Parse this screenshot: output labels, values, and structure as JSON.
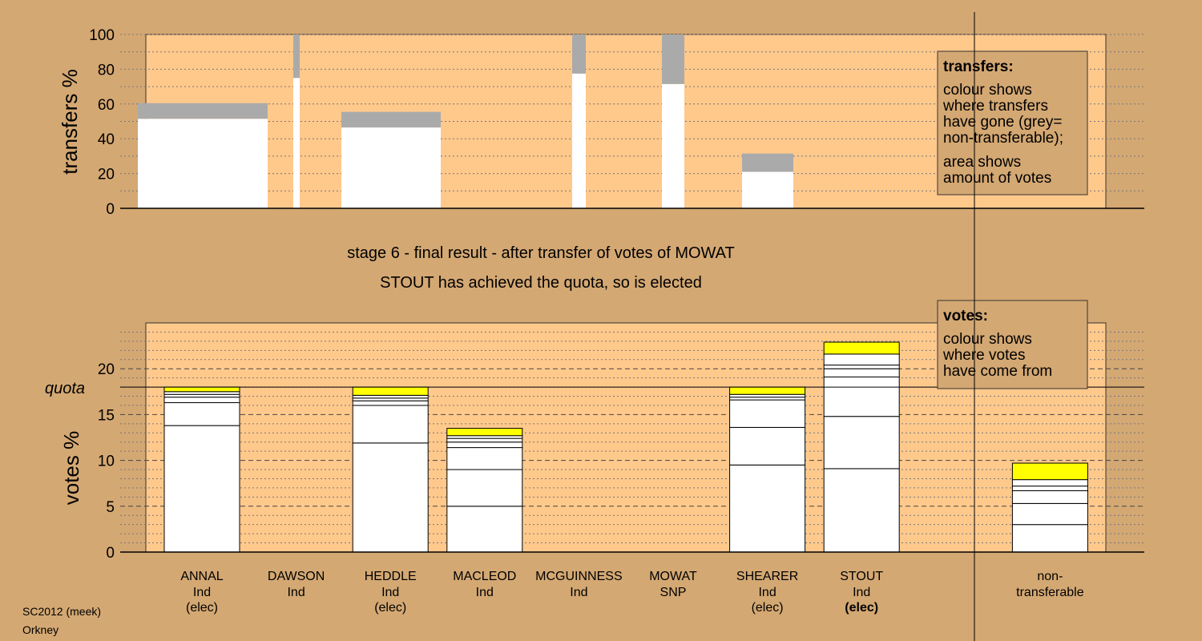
{
  "chart_data": [
    {
      "type": "bar",
      "stacked": true,
      "ylabel": "transfers %",
      "ylim": [
        0,
        100
      ],
      "yticks": [
        0,
        20,
        40,
        60,
        80,
        100
      ],
      "bars": [
        {
          "candidate": "ANNAL",
          "white": 51.5,
          "grey": 9
        },
        {
          "candidate": "DAWSON",
          "white": 75,
          "grey": 25
        },
        {
          "candidate": "HEDDLE",
          "white": 46.5,
          "grey": 9
        },
        {
          "candidate": "MCGUINNESS",
          "white": 77.5,
          "grey": 22.5
        },
        {
          "candidate": "MOWAT",
          "white": 71.5,
          "grey": 28.5
        },
        {
          "candidate": "SHEARER",
          "white": 21,
          "grey": 10.5
        }
      ],
      "legend_box": {
        "title": "transfers:",
        "lines": [
          "colour shows",
          "where transfers",
          "have gone (grey=",
          "non-transferable);",
          "area shows",
          "amount of votes"
        ]
      }
    },
    {
      "type": "bar",
      "stacked": true,
      "ylabel": "votes %",
      "ylim": [
        0,
        25
      ],
      "yticks": [
        0,
        5,
        10,
        15,
        20
      ],
      "quota": 18,
      "quota_label": "quota",
      "colors": {
        "white": "#ffffff",
        "yellow": "#ffff00",
        "grey": "#aaaaaa",
        "background": "#d4a873",
        "plot": "#ffc98c"
      },
      "categories": [
        {
          "name": "ANNAL",
          "party": "Ind",
          "status": "(elec)",
          "segments": [
            13.8,
            2.5,
            0.6,
            0.3,
            0.3
          ],
          "transfer": 0.5
        },
        {
          "name": "DAWSON",
          "party": "Ind",
          "status": "",
          "segments": [],
          "transfer": 0
        },
        {
          "name": "HEDDLE",
          "party": "Ind",
          "status": "(elec)",
          "segments": [
            11.9,
            4.1,
            0.5,
            0.3,
            0.3
          ],
          "transfer": 0.9
        },
        {
          "name": "MACLEOD",
          "party": "Ind",
          "status": "",
          "segments": [
            5.0,
            4.0,
            2.4,
            0.6,
            0.4,
            0.3
          ],
          "transfer": 0.8
        },
        {
          "name": "MCGUINNESS",
          "party": "Ind",
          "status": "",
          "segments": [],
          "transfer": 0
        },
        {
          "name": "MOWAT",
          "party": "SNP",
          "status": "",
          "segments": [],
          "transfer": 0
        },
        {
          "name": "SHEARER",
          "party": "Ind",
          "status": "(elec)",
          "segments": [
            9.5,
            4.1,
            3.0,
            0.3,
            0.3
          ],
          "transfer": 0.8
        },
        {
          "name": "STOUT",
          "party": "Ind",
          "status": "(elec)",
          "segments": [
            9.1,
            5.7,
            4.3,
            0.9,
            0.4,
            1.2
          ],
          "transfer": 1.3
        },
        {
          "name": "",
          "party": "",
          "status": "",
          "segments": [],
          "transfer": 0
        },
        {
          "name": "non-",
          "party": "transferable",
          "status": "",
          "segments": [
            3.0,
            2.3,
            1.4,
            0.5,
            0.7
          ],
          "transfer": 1.8
        }
      ],
      "legend_box": {
        "title": "votes:",
        "lines": [
          "colour shows",
          "where votes",
          "have come from"
        ]
      }
    }
  ],
  "stage": {
    "line1": "stage 6 - final result - after transfer of votes of MOWAT",
    "line2": "STOUT has achieved the quota, so is elected"
  },
  "footer": {
    "line1": "SC2012 (meek)",
    "line2": "Orkney"
  }
}
